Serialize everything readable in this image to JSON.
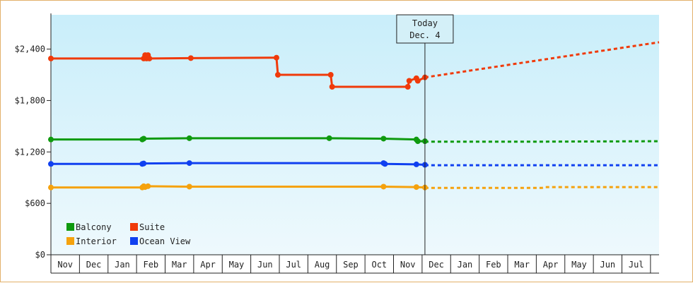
{
  "chart_data": {
    "type": "line",
    "title": "",
    "xlabel": "",
    "ylabel": "",
    "ylim": [
      0,
      2800
    ],
    "yticks": [
      {
        "value": 0,
        "label": "$0"
      },
      {
        "value": 600,
        "label": "$600"
      },
      {
        "value": 1200,
        "label": "$1,200"
      },
      {
        "value": 1800,
        "label": "$1,800"
      },
      {
        "value": 2400,
        "label": "$2,400"
      }
    ],
    "month_labels": [
      "Nov",
      "Dec",
      "Jan",
      "Feb",
      "Mar",
      "Apr",
      "May",
      "Jun",
      "Jul",
      "Aug",
      "Sep",
      "Oct",
      "Nov",
      "Dec",
      "Jan",
      "Feb",
      "Mar",
      "Apr",
      "May",
      "Jun",
      "Jul"
    ],
    "x_range_months": [
      0,
      21.3
    ],
    "today": {
      "x": 13.1,
      "line1": "Today",
      "line2": "Dec. 4"
    },
    "background": {
      "top": "#c9eefa",
      "bottom": "#eef9fd"
    },
    "legend": {
      "placement": "bottom-left",
      "items": [
        {
          "name": "Balcony",
          "color": "#0f9a0f"
        },
        {
          "name": "Suite",
          "color": "#f03a0a"
        },
        {
          "name": "Interior",
          "color": "#f5a20d"
        },
        {
          "name": "Ocean View",
          "color": "#1040f0"
        }
      ]
    },
    "series": [
      {
        "name": "Suite",
        "color": "#f03a0a",
        "points": [
          [
            0.0,
            2290
          ],
          [
            3.25,
            2290
          ],
          [
            3.3,
            2330
          ],
          [
            3.35,
            2290
          ],
          [
            3.4,
            2330
          ],
          [
            3.45,
            2290
          ],
          [
            4.9,
            2295
          ],
          [
            7.9,
            2300
          ],
          [
            7.95,
            2100
          ],
          [
            9.8,
            2100
          ],
          [
            9.85,
            1960
          ],
          [
            12.5,
            1960
          ],
          [
            12.55,
            2030
          ],
          [
            12.8,
            2060
          ],
          [
            12.85,
            2030
          ],
          [
            13.1,
            2070
          ]
        ],
        "forecast": [
          [
            13.1,
            2070
          ],
          [
            21.3,
            2480
          ]
        ]
      },
      {
        "name": "Balcony",
        "color": "#0f9a0f",
        "points": [
          [
            0.0,
            1345
          ],
          [
            3.2,
            1345
          ],
          [
            3.25,
            1355
          ],
          [
            4.85,
            1360
          ],
          [
            9.75,
            1360
          ],
          [
            11.65,
            1355
          ],
          [
            12.8,
            1345
          ],
          [
            12.85,
            1325
          ],
          [
            13.1,
            1325
          ]
        ],
        "forecast": [
          [
            13.1,
            1320
          ],
          [
            17.2,
            1320
          ],
          [
            21.3,
            1325
          ]
        ]
      },
      {
        "name": "Ocean View",
        "color": "#1040f0",
        "points": [
          [
            0.0,
            1060
          ],
          [
            3.2,
            1060
          ],
          [
            3.25,
            1065
          ],
          [
            4.85,
            1070
          ],
          [
            11.65,
            1070
          ],
          [
            11.7,
            1060
          ],
          [
            12.8,
            1055
          ],
          [
            13.1,
            1050
          ]
        ],
        "forecast": [
          [
            13.1,
            1045
          ],
          [
            21.3,
            1045
          ]
        ]
      },
      {
        "name": "Interior",
        "color": "#f5a20d",
        "points": [
          [
            0.0,
            785
          ],
          [
            3.2,
            785
          ],
          [
            3.25,
            800
          ],
          [
            3.3,
            790
          ],
          [
            3.4,
            800
          ],
          [
            4.85,
            795
          ],
          [
            11.65,
            795
          ],
          [
            12.8,
            790
          ],
          [
            13.1,
            785
          ]
        ],
        "forecast": [
          [
            13.1,
            780
          ],
          [
            17.2,
            780
          ],
          [
            17.3,
            790
          ],
          [
            21.3,
            790
          ]
        ]
      }
    ]
  }
}
